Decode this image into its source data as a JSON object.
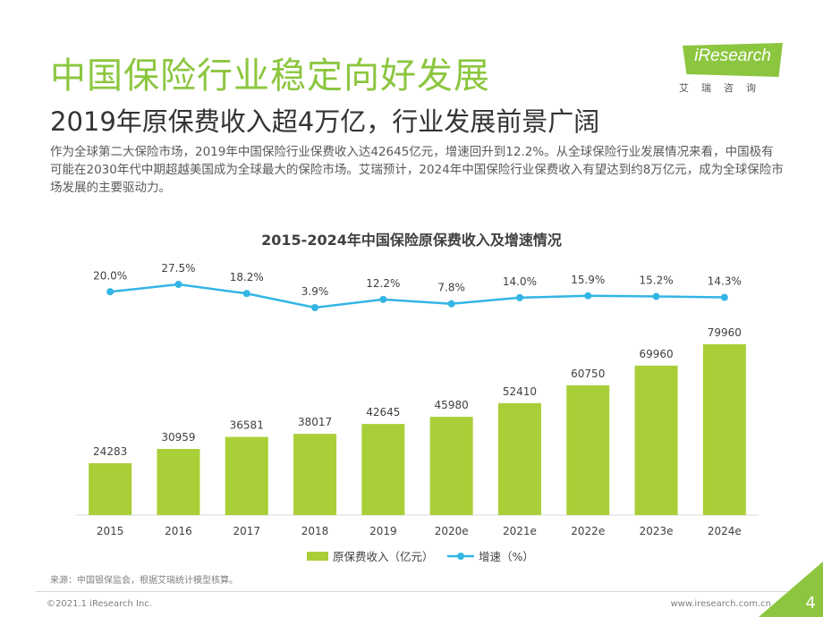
{
  "header": {
    "title": "中国保险行业稳定向好发展",
    "subtitle": "2019年原保费收入超4万亿，行业发展前景广阔",
    "description": "作为全球第二大保险市场，2019年中国保险行业保费收入达42645亿元，增速回升到12.2%。从全球保险行业发展情况来看，中国极有可能在2030年代中期超越美国成为全球最大的保险市场。艾瑞预计，2024年中国保险行业保费收入有望达到约8万亿元，成为全球保险市场发展的主要驱动力。"
  },
  "logo": {
    "text": "iResearch",
    "cn": "艾瑞咨询"
  },
  "chart_data": {
    "type": "bar",
    "title": "2015-2024年中国保险原保费收入及增速情况",
    "categories": [
      "2015",
      "2016",
      "2017",
      "2018",
      "2019",
      "2020e",
      "2021e",
      "2022e",
      "2023e",
      "2024e"
    ],
    "series": [
      {
        "name": "原保费收入（亿元）",
        "type": "bar",
        "color": "#a9cf38",
        "values": [
          24283,
          30959,
          36581,
          38017,
          42645,
          45980,
          52410,
          60750,
          69960,
          79960
        ],
        "labels": [
          "24283",
          "30959",
          "36581",
          "38017",
          "42645",
          "45980",
          "52410",
          "60750",
          "69960",
          "79960"
        ]
      },
      {
        "name": "增速（%）",
        "type": "line",
        "color": "#33b5e5",
        "values": [
          20.0,
          27.5,
          18.2,
          3.9,
          12.2,
          7.8,
          14.0,
          15.9,
          15.2,
          14.3
        ],
        "labels": [
          "20.0%",
          "27.5%",
          "18.2%",
          "3.9%",
          "12.2%",
          "7.8%",
          "14.0%",
          "15.9%",
          "15.2%",
          "14.3%"
        ]
      }
    ],
    "legend_position": "bottom",
    "grid": false
  },
  "footer": {
    "source": "来源：中国银保监会，根据艾瑞统计模型核算。",
    "copyright": "©2021.1 iResearch Inc.",
    "website": "www.iresearch.com.cn",
    "page": "4"
  },
  "colors": {
    "accent": "#8cc63f",
    "bar": "#a9cf38",
    "line": "#33b5e5"
  }
}
